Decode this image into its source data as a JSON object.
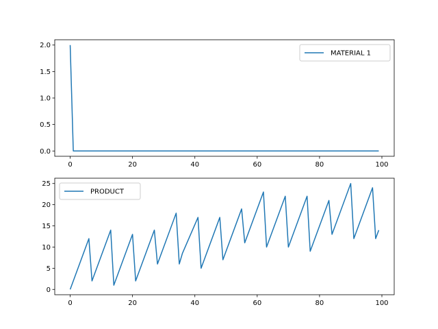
{
  "chart_data": [
    {
      "type": "line",
      "xlim": [
        -4.95,
        103.95
      ],
      "ylim": [
        -0.1,
        2.1
      ],
      "xticks": [
        0,
        20,
        40,
        60,
        80,
        100
      ],
      "xtick_labels": [
        "0",
        "20",
        "40",
        "60",
        "80",
        "100"
      ],
      "yticks": [
        0.0,
        0.5,
        1.0,
        1.5,
        2.0
      ],
      "ytick_labels": [
        "0.0",
        "0.5",
        "1.0",
        "1.5",
        "2.0"
      ],
      "grid": false,
      "legend_position": "upper right",
      "series": [
        {
          "name": "MATERIAL 1",
          "color": "#1f77b4",
          "x": [
            0,
            1,
            99
          ],
          "y": [
            2.0,
            0.0,
            0.0
          ]
        }
      ]
    },
    {
      "type": "line",
      "xlim": [
        -4.95,
        103.95
      ],
      "ylim": [
        -1.25,
        26.25
      ],
      "xticks": [
        0,
        20,
        40,
        60,
        80,
        100
      ],
      "xtick_labels": [
        "0",
        "20",
        "40",
        "60",
        "80",
        "100"
      ],
      "yticks": [
        0,
        5,
        10,
        15,
        20,
        25
      ],
      "ytick_labels": [
        "0",
        "5",
        "10",
        "15",
        "20",
        "25"
      ],
      "grid": false,
      "legend_position": "upper left",
      "series": [
        {
          "name": "PRODUCT",
          "color": "#1f77b4",
          "x": [
            0,
            6,
            7,
            13,
            14,
            20,
            21,
            27,
            28,
            34,
            35,
            36,
            41,
            42,
            48,
            49,
            55,
            56,
            62,
            63,
            69,
            70,
            76,
            77,
            83,
            84,
            90,
            91,
            97,
            98,
            99
          ],
          "y": [
            0,
            12,
            2,
            14,
            1,
            13,
            2,
            14,
            6,
            18,
            6,
            8.5,
            17,
            5,
            17,
            7,
            19,
            11,
            23,
            10,
            22,
            10,
            22,
            9,
            21,
            13,
            25,
            12,
            24,
            12,
            14
          ]
        }
      ]
    }
  ]
}
